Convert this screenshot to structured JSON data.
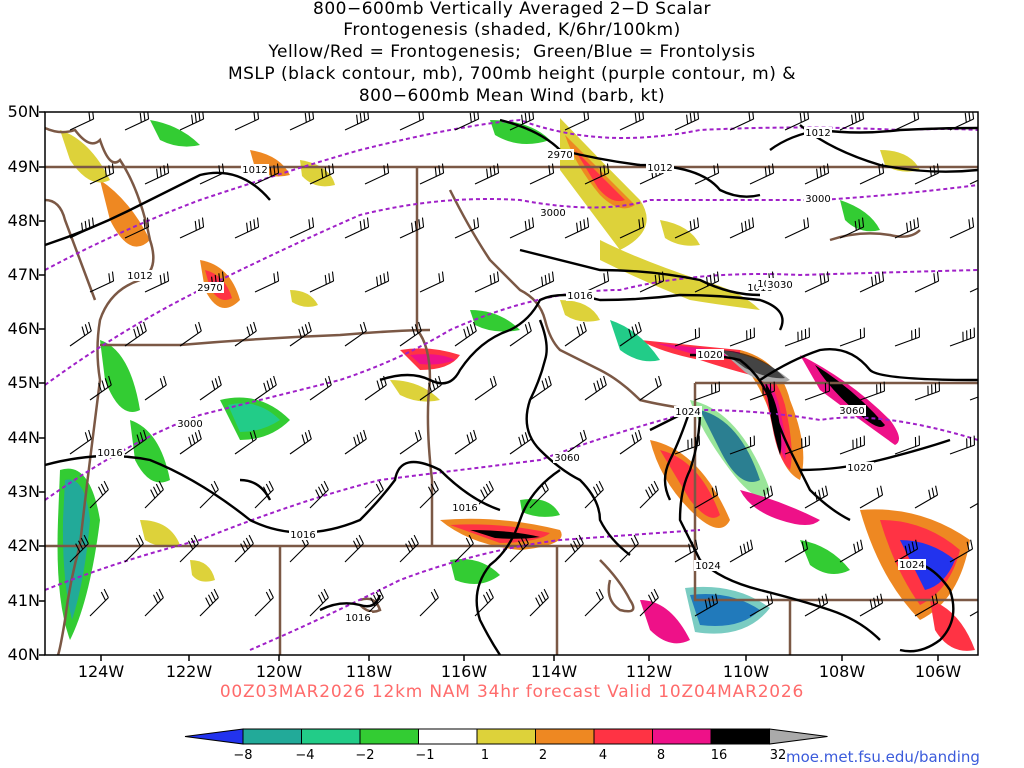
{
  "title_lines": [
    "800−600mb Vertically Averaged 2−D Scalar",
    "Frontogenesis (shaded, K/6hr/100km)",
    "Yellow/Red = Frontogenesis;  Green/Blue = Frontolysis",
    "MSLP (black contour, mb), 700mb height (purple contour, m) &",
    "800−600mb Mean Wind (barb, kt)"
  ],
  "valid_line": "00Z03MAR2026 12km NAM 34hr forecast Valid 10Z04MAR2026",
  "credit": "moe.met.fsu.edu/banding",
  "lat_labels": [
    "50N",
    "49N",
    "48N",
    "47N",
    "46N",
    "45N",
    "44N",
    "43N",
    "42N",
    "41N",
    "40N"
  ],
  "lon_labels": [
    "124W",
    "122W",
    "120W",
    "118W",
    "116W",
    "114W",
    "112W",
    "110W",
    "108W",
    "106W"
  ],
  "mslp_labels": [
    "1012",
    "1012",
    "1012",
    "1012",
    "1016",
    "1016",
    "1016",
    "1016",
    "1016",
    "1016",
    "1020",
    "1020",
    "1024",
    "1024",
    "1024",
    "1016"
  ],
  "height_labels": [
    "2970",
    "2970",
    "3000",
    "3000",
    "3000",
    "3030",
    "3060",
    "3060"
  ],
  "colorbar": {
    "labels": [
      "−8",
      "−4",
      "−2",
      "−1",
      "1",
      "2",
      "4",
      "8",
      "16",
      "32"
    ],
    "colors": [
      "#2233ee",
      "#22aa99",
      "#22cc88",
      "#33cc33",
      "#ffffff",
      "#ddd23a",
      "#ee8822",
      "#ff3344",
      "#ee1188",
      "#000000",
      "#aaaaaa"
    ]
  },
  "colors": {
    "mslp_contour": "#000000",
    "height_contour": "#a020c8",
    "borders": "#7b5845",
    "valid_text": "#ff6b6b",
    "credit_text": "#3b5bdb"
  }
}
